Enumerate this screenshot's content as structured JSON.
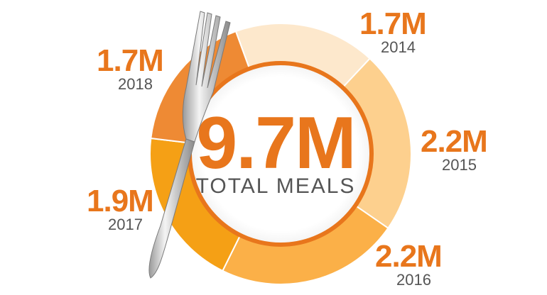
{
  "chart_data": {
    "type": "pie",
    "categories": [
      "2014",
      "2015",
      "2016",
      "2017",
      "2018"
    ],
    "values": [
      1.7,
      2.2,
      2.2,
      1.9,
      1.7
    ],
    "value_labels": [
      "1.7M",
      "2.2M",
      "2.2M",
      "1.9M",
      "1.7M"
    ],
    "colors": [
      "#fde8cc",
      "#fdd08e",
      "#fbb048",
      "#f5a015",
      "#ee8a34"
    ],
    "center_value": "9.7M",
    "center_label": "TOTAL MEALS"
  },
  "colors": {
    "accent": "#e8761c",
    "ring": "#e8761c",
    "label_gray": "#555555"
  },
  "decor": {
    "icon": "fork-icon"
  }
}
